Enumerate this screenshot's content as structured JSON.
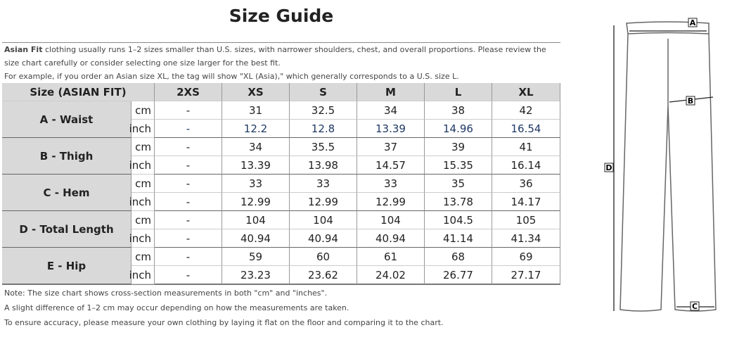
{
  "title": "Size Guide",
  "intro": {
    "lead": "Asian Fit",
    "text": " clothing usually runs 1–2 sizes smaller than U.S. sizes, with narrower shoulders, chest, and overall proportions. Please review the size chart carefully or consider selecting one size larger for the best fit.",
    "example": "For example, if you order an Asian size XL, the tag will show \"XL (Asia),\" which generally corresponds to a U.S. size L."
  },
  "table": {
    "header": [
      "Size (ASIAN FIT)",
      "2XS",
      "XS",
      "S",
      "M",
      "L",
      "XL"
    ],
    "rows": [
      {
        "name": "A - Waist",
        "units": [
          {
            "unit": "cm",
            "values": [
              "-",
              "31",
              "32.5",
              "34",
              "38",
              "42"
            ]
          },
          {
            "unit": "inch",
            "values": [
              "-",
              "12.2",
              "12.8",
              "13.39",
              "14.96",
              "16.54"
            ]
          }
        ]
      },
      {
        "name": "B - Thigh",
        "units": [
          {
            "unit": "cm",
            "values": [
              "-",
              "34",
              "35.5",
              "37",
              "39",
              "41"
            ]
          },
          {
            "unit": "inch",
            "values": [
              "-",
              "13.39",
              "13.98",
              "14.57",
              "15.35",
              "16.14"
            ]
          }
        ]
      },
      {
        "name": "C - Hem",
        "units": [
          {
            "unit": "cm",
            "values": [
              "-",
              "33",
              "33",
              "33",
              "35",
              "36"
            ]
          },
          {
            "unit": "inch",
            "values": [
              "-",
              "12.99",
              "12.99",
              "12.99",
              "13.78",
              "14.17"
            ]
          }
        ]
      },
      {
        "name": "D - Total Length",
        "units": [
          {
            "unit": "cm",
            "values": [
              "-",
              "104",
              "104",
              "104",
              "104.5",
              "105"
            ]
          },
          {
            "unit": "inch",
            "values": [
              "-",
              "40.94",
              "40.94",
              "40.94",
              "41.14",
              "41.34"
            ]
          }
        ]
      },
      {
        "name": "E - Hip",
        "units": [
          {
            "unit": "cm",
            "values": [
              "-",
              "59",
              "60",
              "61",
              "68",
              "69"
            ]
          },
          {
            "unit": "inch",
            "values": [
              "-",
              "23.23",
              "23.62",
              "24.02",
              "26.77",
              "27.17"
            ]
          }
        ]
      }
    ]
  },
  "notes": [
    "Note: The size chart shows cross-section measurements in both \"cm\" and \"inches\".",
    "A slight difference of 1–2 cm may occur depending on how the measurements are taken.",
    "To ensure accuracy, please measure your own clothing by laying it flat on the floor and comparing it to the chart."
  ],
  "diagram": {
    "labels": [
      "A",
      "B",
      "C",
      "D"
    ]
  }
}
